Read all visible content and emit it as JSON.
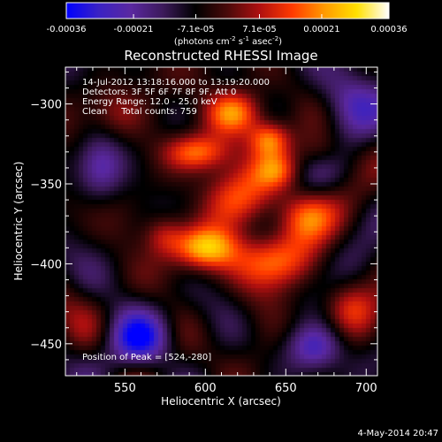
{
  "chart_data": {
    "type": "heatmap",
    "title": "Reconstructed RHESSI Image",
    "xlabel": "Heliocentric X (arcsec)",
    "ylabel": "Heliocentric Y (arcsec)",
    "xlim": [
      513,
      707
    ],
    "ylim": [
      -470,
      -277
    ],
    "x_ticks": [
      550,
      600,
      650,
      700
    ],
    "y_ticks": [
      -300,
      -350,
      -400,
      -450
    ],
    "colorbar": {
      "range": [
        -0.00036,
        0.00036
      ],
      "ticks": [
        "-0.00036",
        "-0.00021",
        "-7.1e-05",
        "7.1e-05",
        "0.00021",
        "0.00036"
      ],
      "unit_parts": [
        "(photons cm",
        "-2",
        " s",
        "-1",
        " asec",
        "-2",
        ")"
      ],
      "colors": [
        "#0000ff",
        "#3a22c4",
        "#5a28a0",
        "#3c1a5a",
        "#000000",
        "#4a0a0a",
        "#b01010",
        "#ff3a00",
        "#ff9a00",
        "#ffe000",
        "#ffffff"
      ]
    },
    "annotations": [
      "14-Jul-2012 13:18:16.000 to 13:19:20.000",
      "Detectors: 3F 5F 6F 7F 8F 9F, Att 0",
      "Energy Range: 12.0 - 25.0 keV",
      "Clean     Total counts: 759"
    ],
    "peak_label": "Position of Peak = [524,-280]",
    "peak": [
      524,
      -280
    ],
    "emission_sources": [
      {
        "x": 618,
        "y": -305,
        "sx": 13,
        "sy": 10,
        "amp": 0.00028
      },
      {
        "x": 640,
        "y": -322,
        "sx": 9,
        "sy": 8,
        "amp": 0.00024
      },
      {
        "x": 595,
        "y": -330,
        "sx": 14,
        "sy": 8,
        "amp": 0.00022
      },
      {
        "x": 618,
        "y": -360,
        "sx": 16,
        "sy": 14,
        "amp": 0.0002
      },
      {
        "x": 600,
        "y": -390,
        "sx": 14,
        "sy": 9,
        "amp": 0.00026
      },
      {
        "x": 640,
        "y": -398,
        "sx": 18,
        "sy": 12,
        "amp": 0.00024
      },
      {
        "x": 662,
        "y": -370,
        "sx": 12,
        "sy": 11,
        "amp": 0.00018
      },
      {
        "x": 645,
        "y": -342,
        "sx": 10,
        "sy": 8,
        "amp": 0.00017
      },
      {
        "x": 574,
        "y": -382,
        "sx": 9,
        "sy": 9,
        "amp": 0.00014
      },
      {
        "x": 672,
        "y": -330,
        "sx": 11,
        "sy": 9,
        "amp": 0.00012
      },
      {
        "x": 545,
        "y": -305,
        "sx": 12,
        "sy": 12,
        "amp": 9e-05
      },
      {
        "x": 690,
        "y": -428,
        "sx": 11,
        "sy": 11,
        "amp": 0.00012
      },
      {
        "x": 560,
        "y": -448,
        "sx": 14,
        "sy": 12,
        "amp": -0.00024
      },
      {
        "x": 690,
        "y": -300,
        "sx": 16,
        "sy": 14,
        "amp": -0.0002
      },
      {
        "x": 668,
        "y": -452,
        "sx": 12,
        "sy": 10,
        "amp": -0.00018
      },
      {
        "x": 535,
        "y": -340,
        "sx": 10,
        "sy": 14,
        "amp": -0.00016
      }
    ],
    "noise_amplitude": 9e-05
  },
  "footer": {
    "timestamp": "4-May-2014 20:47"
  }
}
